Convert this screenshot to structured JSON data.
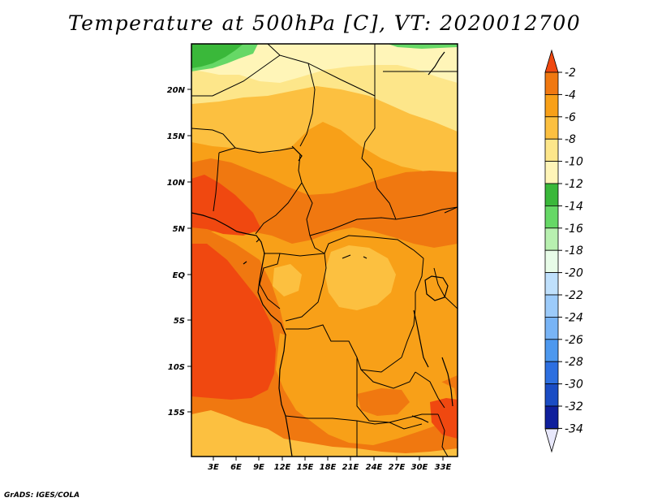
{
  "title": "Temperature at 500hPa [C], VT: 2020012700",
  "credit": "GrADS: IGES/COLA",
  "map": {
    "lat_labels": [
      "20N",
      "15N",
      "10N",
      "5N",
      "EQ",
      "5S",
      "10S",
      "15S"
    ],
    "lon_labels": [
      "3E",
      "6E",
      "9E",
      "12E",
      "15E",
      "18E",
      "21E",
      "24E",
      "27E",
      "30E",
      "33E"
    ]
  },
  "colorbar": {
    "labels": [
      "-2",
      "-4",
      "-6",
      "-8",
      "-10",
      "-12",
      "-14",
      "-16",
      "-18",
      "-20",
      "-22",
      "-24",
      "-26",
      "-28",
      "-30",
      "-32",
      "-34"
    ],
    "colors": [
      "#f04810",
      "#f07810",
      "#f8a018",
      "#fcc040",
      "#fde68a",
      "#fff5b8",
      "#3ab83a",
      "#66d866",
      "#b8f0b0",
      "#e8fce8",
      "#bfe0fc",
      "#9ccbfa",
      "#78b4f6",
      "#4d98ee",
      "#2d6fe0",
      "#1a4cc4",
      "#0f1f9c",
      "#080a6e",
      "#e8e8fb"
    ]
  }
}
